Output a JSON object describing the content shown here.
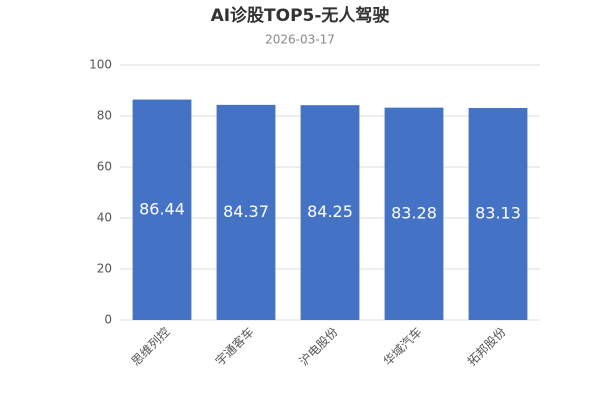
{
  "chart_data": {
    "type": "bar",
    "title": "AI诊股TOP5-无人驾驶",
    "subtitle": "2026-03-17",
    "categories": [
      "思维列控",
      "宇通客车",
      "沪电股份",
      "华域汽车",
      "拓邦股份"
    ],
    "values": [
      86.44,
      84.37,
      84.25,
      83.28,
      83.13
    ],
    "color": "#4472c4",
    "ylim": [
      0,
      100
    ],
    "yticks": [
      0,
      20,
      40,
      60,
      80,
      100
    ],
    "grid": true
  }
}
